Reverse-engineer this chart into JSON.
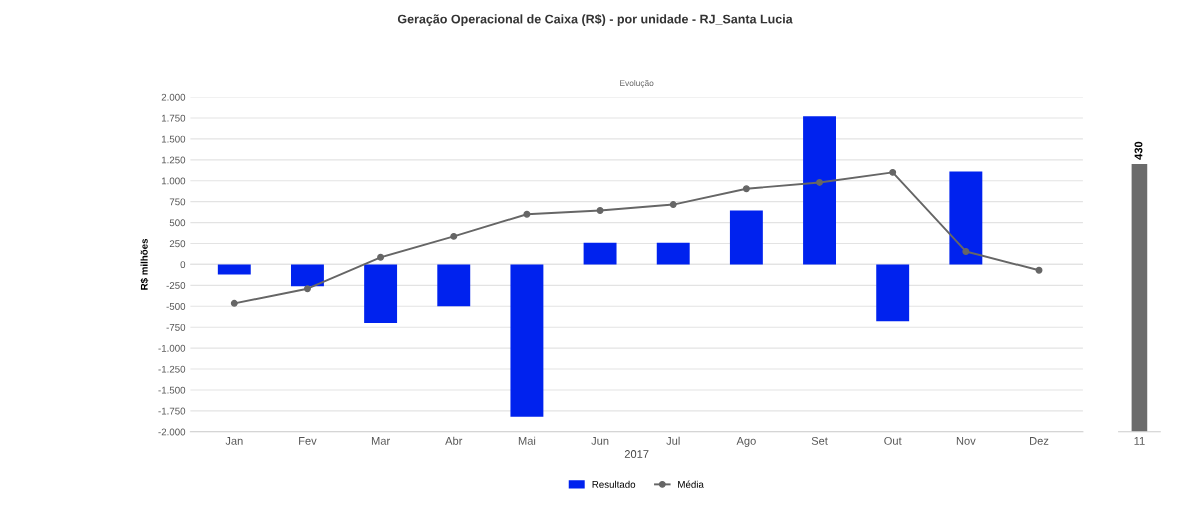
{
  "chart_data": [
    {
      "type": "bar",
      "title": "Geração Operacional de Caixa (R$) - por unidade - RJ_Santa Lucia",
      "subtitle": "Evolução",
      "xlabel": "2017",
      "ylabel": "R$ milhões",
      "categories": [
        "Jan",
        "Fev",
        "Mar",
        "Abr",
        "Mai",
        "Jun",
        "Jul",
        "Ago",
        "Set",
        "Out",
        "Nov",
        "Dez"
      ],
      "series": [
        {
          "name": "Resultado",
          "type": "bar",
          "color": "#0022ee",
          "values": [
            -120,
            -260,
            -700,
            -500,
            -1820,
            260,
            260,
            645,
            1770,
            -680,
            1110,
            null
          ]
        },
        {
          "name": "Média",
          "type": "line",
          "color": "#666666",
          "values": [
            -465,
            -290,
            85,
            335,
            600,
            645,
            715,
            905,
            980,
            1100,
            155,
            -70
          ]
        }
      ],
      "ylim": [
        -2000,
        2000
      ],
      "yticks": [
        {
          "value": -2000,
          "label": "-2.000"
        },
        {
          "value": -1750,
          "label": "-1.750"
        },
        {
          "value": -1500,
          "label": "-1.500"
        },
        {
          "value": -1250,
          "label": "-1.250"
        },
        {
          "value": -1000,
          "label": "-1.000"
        },
        {
          "value": -750,
          "label": "-750"
        },
        {
          "value": -500,
          "label": "-500"
        },
        {
          "value": -250,
          "label": "-250"
        },
        0,
        250,
        500,
        750,
        {
          "value": 1000,
          "label": "1.000"
        },
        {
          "value": 1250,
          "label": "1.250"
        },
        {
          "value": 1500,
          "label": "1.500"
        },
        {
          "value": 1750,
          "label": "1.750"
        },
        {
          "value": 2000,
          "label": "2.000"
        }
      ],
      "grid": "y",
      "legend": "bottom",
      "marker": "circle"
    },
    {
      "type": "bar",
      "categories": [
        "11"
      ],
      "values": [
        430
      ],
      "colors": [
        "#6b6b6b"
      ],
      "data_labels": true,
      "tick_labels": "x"
    }
  ]
}
